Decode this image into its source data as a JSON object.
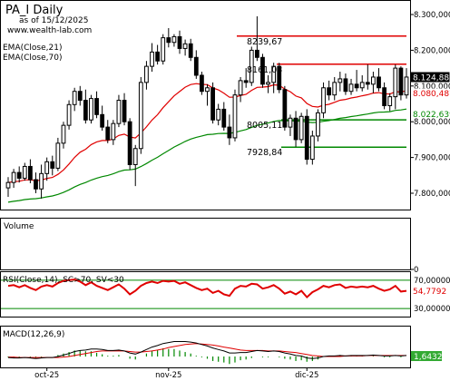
{
  "header": {
    "title": "PA_I Daily",
    "subtitle": "as of 15/12/2025",
    "website": "www.wealth-lab.com"
  },
  "indicators": {
    "ema21_label": "EMA(Close,21)",
    "ema70_label": "EMA(Close,70)",
    "volume_label": "Volume",
    "rsi_label": "RSI(Close,14), SC>70, SV<30",
    "macd_label": "MACD(12,26,9)"
  },
  "colors": {
    "ema21": "#e00000",
    "ema70": "#008800",
    "resistance": "#e00000",
    "support": "#008800",
    "rsi_line": "#e00000",
    "rsi_bands": "#008800",
    "macd_line": "#000000",
    "signal_line": "#e00000",
    "histogram": "#008800",
    "price_tag": "#000000",
    "ema21_tag": "#e00000",
    "ema70_tag": "#008800",
    "rsi_tag": "#e00000",
    "macd_tag": "#008800"
  },
  "chart_data": [
    {
      "type": "candlestick",
      "title": "PA_I Daily",
      "y_ticks": [
        "8.300,000",
        "8.200,000",
        "8.100,000",
        "8.000,000",
        "7.900,000",
        "7.800,000"
      ],
      "ylim": [
        7750,
        8320
      ],
      "x_tick_labels": [
        "oct-25",
        "nov-25",
        "dic-25"
      ],
      "annotations": [
        "8239,67",
        "8161,03",
        "8005,11",
        "7928,84"
      ],
      "last_values": {
        "close": "8.124,880",
        "ema21": "8.080,487",
        "ema70": "8.022,639"
      },
      "levels": [
        {
          "value": 8239.67,
          "color": "red"
        },
        {
          "value": 8161.03,
          "color": "red"
        },
        {
          "value": 8005.11,
          "color": "green"
        },
        {
          "value": 7928.84,
          "color": "green"
        }
      ],
      "candles": [
        {
          "o": 7815,
          "h": 7845,
          "l": 7790,
          "c": 7830
        },
        {
          "o": 7830,
          "h": 7868,
          "l": 7815,
          "c": 7858
        },
        {
          "o": 7858,
          "h": 7875,
          "l": 7830,
          "c": 7842
        },
        {
          "o": 7842,
          "h": 7885,
          "l": 7835,
          "c": 7875
        },
        {
          "o": 7875,
          "h": 7895,
          "l": 7828,
          "c": 7838
        },
        {
          "o": 7838,
          "h": 7858,
          "l": 7800,
          "c": 7812
        },
        {
          "o": 7812,
          "h": 7880,
          "l": 7785,
          "c": 7855
        },
        {
          "o": 7855,
          "h": 7900,
          "l": 7835,
          "c": 7888
        },
        {
          "o": 7888,
          "h": 7905,
          "l": 7850,
          "c": 7870
        },
        {
          "o": 7870,
          "h": 7955,
          "l": 7862,
          "c": 7940
        },
        {
          "o": 7940,
          "h": 8000,
          "l": 7925,
          "c": 7990
        },
        {
          "o": 7990,
          "h": 8060,
          "l": 7978,
          "c": 8048
        },
        {
          "o": 8048,
          "h": 8095,
          "l": 8030,
          "c": 8085
        },
        {
          "o": 8085,
          "h": 8100,
          "l": 8045,
          "c": 8060
        },
        {
          "o": 8060,
          "h": 8090,
          "l": 7995,
          "c": 8005
        },
        {
          "o": 8005,
          "h": 8075,
          "l": 7995,
          "c": 8065
        },
        {
          "o": 8065,
          "h": 8085,
          "l": 8010,
          "c": 8020
        },
        {
          "o": 8020,
          "h": 8045,
          "l": 7975,
          "c": 7985
        },
        {
          "o": 7985,
          "h": 8005,
          "l": 7940,
          "c": 7950
        },
        {
          "o": 7950,
          "h": 8005,
          "l": 7935,
          "c": 7995
        },
        {
          "o": 7995,
          "h": 8075,
          "l": 7985,
          "c": 8060
        },
        {
          "o": 8060,
          "h": 8080,
          "l": 7990,
          "c": 8000
        },
        {
          "o": 8000,
          "h": 8010,
          "l": 7865,
          "c": 7880
        },
        {
          "o": 7880,
          "h": 7935,
          "l": 7820,
          "c": 7925
        },
        {
          "o": 7925,
          "h": 8125,
          "l": 7910,
          "c": 8110
        },
        {
          "o": 8110,
          "h": 8170,
          "l": 8090,
          "c": 8155
        },
        {
          "o": 8155,
          "h": 8220,
          "l": 8140,
          "c": 8195
        },
        {
          "o": 8195,
          "h": 8215,
          "l": 8160,
          "c": 8170
        },
        {
          "o": 8170,
          "h": 8245,
          "l": 8160,
          "c": 8235
        },
        {
          "o": 8235,
          "h": 8262,
          "l": 8208,
          "c": 8222
        },
        {
          "o": 8222,
          "h": 8245,
          "l": 8210,
          "c": 8238
        },
        {
          "o": 8238,
          "h": 8255,
          "l": 8190,
          "c": 8205
        },
        {
          "o": 8205,
          "h": 8230,
          "l": 8185,
          "c": 8218
        },
        {
          "o": 8218,
          "h": 8232,
          "l": 8170,
          "c": 8180
        },
        {
          "o": 8180,
          "h": 8200,
          "l": 8120,
          "c": 8130
        },
        {
          "o": 8130,
          "h": 8140,
          "l": 8075,
          "c": 8085
        },
        {
          "o": 8085,
          "h": 8105,
          "l": 8045,
          "c": 8095
        },
        {
          "o": 8095,
          "h": 8110,
          "l": 7995,
          "c": 8005
        },
        {
          "o": 8005,
          "h": 8050,
          "l": 7990,
          "c": 8035
        },
        {
          "o": 8035,
          "h": 8055,
          "l": 7975,
          "c": 7985
        },
        {
          "o": 7985,
          "h": 8020,
          "l": 7935,
          "c": 7955
        },
        {
          "o": 7955,
          "h": 8090,
          "l": 7945,
          "c": 8075
        },
        {
          "o": 8075,
          "h": 8125,
          "l": 8055,
          "c": 8115
        },
        {
          "o": 8115,
          "h": 8150,
          "l": 8095,
          "c": 8110
        },
        {
          "o": 8110,
          "h": 8210,
          "l": 8100,
          "c": 8200
        },
        {
          "o": 8200,
          "h": 8295,
          "l": 8170,
          "c": 8180
        },
        {
          "o": 8180,
          "h": 8190,
          "l": 8095,
          "c": 8105
        },
        {
          "o": 8105,
          "h": 8130,
          "l": 8080,
          "c": 8110
        },
        {
          "o": 8110,
          "h": 8165,
          "l": 8080,
          "c": 8155
        },
        {
          "o": 8155,
          "h": 8165,
          "l": 8080,
          "c": 8090
        },
        {
          "o": 8090,
          "h": 8100,
          "l": 7975,
          "c": 7985
        },
        {
          "o": 7985,
          "h": 8020,
          "l": 7960,
          "c": 8010
        },
        {
          "o": 8010,
          "h": 8030,
          "l": 7930,
          "c": 7950
        },
        {
          "o": 7950,
          "h": 8025,
          "l": 7940,
          "c": 8015
        },
        {
          "o": 8015,
          "h": 8035,
          "l": 7880,
          "c": 7895
        },
        {
          "o": 7895,
          "h": 7975,
          "l": 7880,
          "c": 7960
        },
        {
          "o": 7960,
          "h": 8035,
          "l": 7945,
          "c": 8025
        },
        {
          "o": 8025,
          "h": 8110,
          "l": 8010,
          "c": 8095
        },
        {
          "o": 8095,
          "h": 8115,
          "l": 8060,
          "c": 8075
        },
        {
          "o": 8075,
          "h": 8125,
          "l": 8060,
          "c": 8110
        },
        {
          "o": 8110,
          "h": 8140,
          "l": 8085,
          "c": 8120
        },
        {
          "o": 8120,
          "h": 8135,
          "l": 8075,
          "c": 8085
        },
        {
          "o": 8085,
          "h": 8120,
          "l": 8075,
          "c": 8105
        },
        {
          "o": 8105,
          "h": 8145,
          "l": 8085,
          "c": 8095
        },
        {
          "o": 8095,
          "h": 8130,
          "l": 8085,
          "c": 8110
        },
        {
          "o": 8110,
          "h": 8160,
          "l": 8090,
          "c": 8105
        },
        {
          "o": 8105,
          "h": 8140,
          "l": 8080,
          "c": 8125
        },
        {
          "o": 8125,
          "h": 8150,
          "l": 8085,
          "c": 8095
        },
        {
          "o": 8095,
          "h": 8110,
          "l": 8035,
          "c": 8045
        },
        {
          "o": 8045,
          "h": 8080,
          "l": 8030,
          "c": 8070
        },
        {
          "o": 8070,
          "h": 8160,
          "l": 8035,
          "c": 8150
        },
        {
          "o": 8150,
          "h": 8155,
          "l": 8060,
          "c": 8075
        },
        {
          "o": 8075,
          "h": 8150,
          "l": 8065,
          "c": 8125
        }
      ]
    },
    {
      "type": "bar",
      "title": "Volume",
      "y_ticks": [
        "0"
      ]
    },
    {
      "type": "line",
      "title": "RSI(Close,14), SC>70, SV<30",
      "y_ticks": [
        "70,00000",
        "30,00000"
      ],
      "ylim": [
        20,
        80
      ],
      "last_value": "54,7792",
      "bands": [
        70,
        30
      ],
      "series": [
        {
          "values": [
            62,
            63,
            60,
            63,
            59,
            56,
            61,
            63,
            61,
            66,
            69,
            70,
            71,
            68,
            63,
            67,
            62,
            59,
            56,
            60,
            64,
            58,
            50,
            55,
            62,
            66,
            68,
            66,
            69,
            68,
            69,
            65,
            67,
            63,
            59,
            56,
            58,
            52,
            55,
            50,
            48,
            58,
            62,
            61,
            65,
            64,
            58,
            60,
            63,
            58,
            51,
            54,
            50,
            55,
            46,
            53,
            57,
            62,
            60,
            63,
            64,
            59,
            61,
            60,
            61,
            60,
            62,
            58,
            55,
            57,
            62,
            54,
            55
          ]
        }
      ]
    },
    {
      "type": "line",
      "title": "MACD(12,26,9)",
      "last_value": "1,6432",
      "series": [
        {
          "values": [
            -2,
            -3,
            -3,
            -2,
            -3,
            -4,
            -3,
            -2,
            -2,
            0,
            3,
            6,
            10,
            12,
            13,
            15,
            15,
            14,
            12,
            12,
            13,
            11,
            7,
            5,
            9,
            14,
            19,
            22,
            26,
            28,
            30,
            30,
            30,
            29,
            27,
            24,
            21,
            17,
            14,
            11,
            7,
            7,
            8,
            8,
            10,
            12,
            11,
            10,
            11,
            10,
            7,
            5,
            2,
            1,
            -3,
            -4,
            -3,
            0,
            1,
            1,
            2,
            1,
            2,
            2,
            2,
            2,
            3,
            2,
            1,
            1,
            2,
            1,
            2
          ]
        },
        {
          "values": [
            -1,
            -1,
            -2,
            -2,
            -2,
            -2,
            -2,
            -2,
            -2,
            -2,
            -1,
            0,
            2,
            4,
            6,
            8,
            10,
            11,
            11,
            11,
            11,
            11,
            10,
            9,
            9,
            10,
            11,
            13,
            15,
            18,
            20,
            22,
            24,
            25,
            26,
            25,
            24,
            23,
            21,
            19,
            17,
            15,
            13,
            12,
            12,
            12,
            12,
            11,
            11,
            11,
            10,
            9,
            8,
            6,
            4,
            2,
            1,
            0,
            0,
            0,
            0,
            1,
            1,
            1,
            1,
            2,
            2,
            2,
            2,
            2,
            2,
            2,
            2
          ]
        }
      ]
    }
  ]
}
